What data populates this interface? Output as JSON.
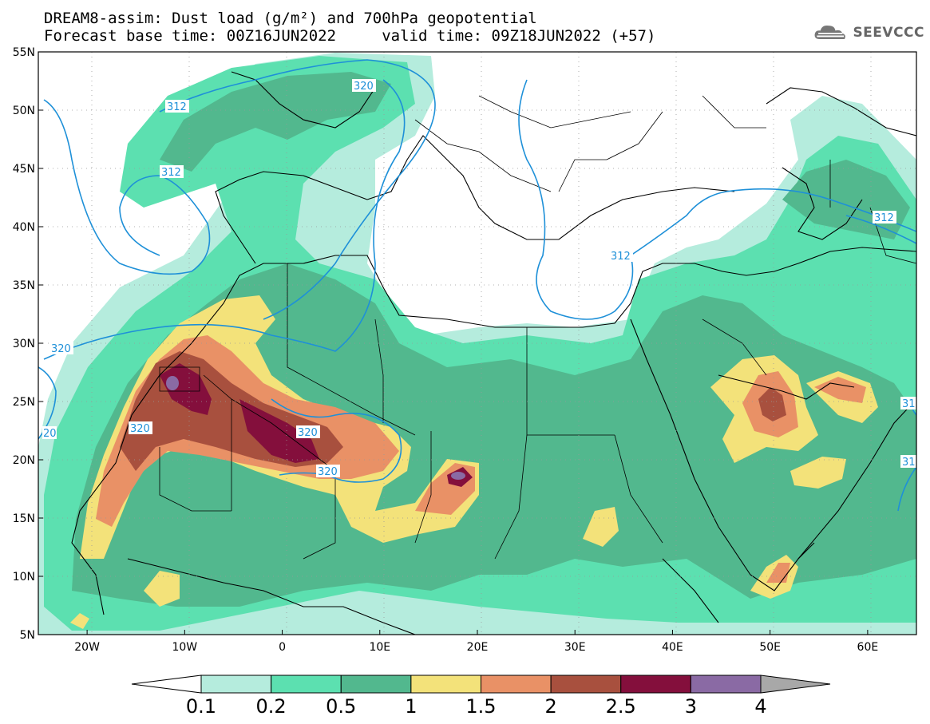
{
  "header": {
    "title_line1": "DREAM8-assim: Dust load (g/m²) and 700hPa geopotential",
    "title_line2": "Forecast base time: 00Z16JUN2022     valid time: 09Z18JUN2022 (+57)",
    "logo_text": "SEEVCCC",
    "logo_icon": "cloud-icon"
  },
  "map": {
    "lat_ticks": [
      "55N",
      "50N",
      "45N",
      "40N",
      "35N",
      "30N",
      "25N",
      "20N",
      "15N",
      "10N",
      "5N"
    ],
    "lon_ticks": [
      "20W",
      "10W",
      "0",
      "10E",
      "20E",
      "30E",
      "40E",
      "50E",
      "60E"
    ],
    "extent": {
      "lon_min": -25,
      "lon_max": 65,
      "lat_min": 5,
      "lat_max": 55
    },
    "contour_labels": [
      "312",
      "320",
      "312",
      "312",
      "312",
      "320",
      "320",
      "320",
      "20",
      "320",
      "31",
      "31"
    ],
    "contour_color": "#1e90d8"
  },
  "colorbar": {
    "labels": [
      "0.1",
      "0.2",
      "0.5",
      "1",
      "1.5",
      "2",
      "2.5",
      "3",
      "4"
    ],
    "colors": [
      "#ffffff",
      "#b5ecdd",
      "#5ce0b0",
      "#52b88e",
      "#f3e27a",
      "#e99166",
      "#a8503e",
      "#840f3c",
      "#8a6aa4",
      "#a8a8a8"
    ]
  }
}
